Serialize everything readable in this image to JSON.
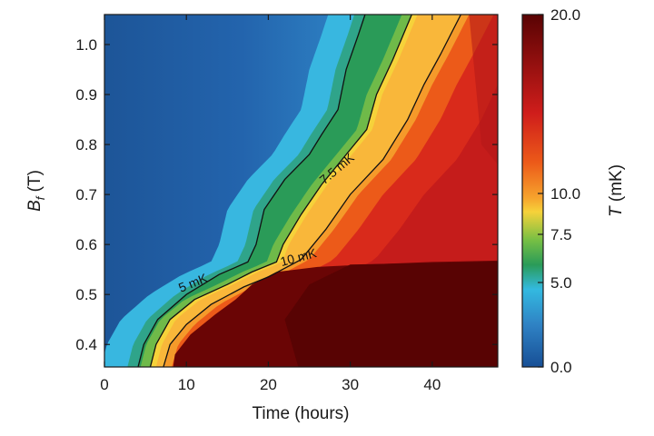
{
  "chart_data": {
    "type": "heatmap",
    "xlabel": "Time (hours)",
    "ylabel_main": "B",
    "ylabel_sub": "f",
    "ylabel_unit": " (T)",
    "xlim": [
      0,
      48
    ],
    "ylim": [
      0.355,
      1.06
    ],
    "x_ticks": [
      0,
      10,
      20,
      30,
      40
    ],
    "x_tick_labels": [
      "0",
      "10",
      "20",
      "30",
      "40"
    ],
    "y_ticks": [
      0.4,
      0.5,
      0.6,
      0.7,
      0.8,
      0.9,
      1.0
    ],
    "y_tick_labels": [
      "0.4",
      "0.5",
      "0.6",
      "0.7",
      "0.8",
      "0.9",
      "1.0"
    ],
    "colorbar": {
      "label_main": "T",
      "label_unit": " (mK)",
      "range": [
        0,
        20
      ],
      "ticks": [
        0.0,
        5.0,
        7.5,
        10.0,
        20.0
      ],
      "tick_labels": [
        "0.0",
        "5.0",
        "7.5",
        "10.0",
        "20.0"
      ],
      "colors": [
        "#174f96",
        "#2f82c4",
        "#33b9e0",
        "#2a9b58",
        "#77bf44",
        "#f6d23a",
        "#f6a32d",
        "#ec5a19",
        "#cf1d1b",
        "#590303"
      ]
    },
    "contours": [
      {
        "name": "5 mK",
        "level": 5,
        "points": [
          [
            4.1,
            0.355
          ],
          [
            4.8,
            0.4
          ],
          [
            6.5,
            0.45
          ],
          [
            10,
            0.5
          ],
          [
            14,
            0.54
          ],
          [
            17.5,
            0.565
          ],
          [
            18.5,
            0.6
          ],
          [
            19.5,
            0.67
          ],
          [
            22,
            0.73
          ],
          [
            25,
            0.78
          ],
          [
            26.5,
            0.82
          ],
          [
            28.5,
            0.87
          ],
          [
            29.5,
            0.95
          ],
          [
            31,
            1.02
          ],
          [
            31.8,
            1.06
          ]
        ]
      },
      {
        "name": "7.5 mK",
        "level": 7.5,
        "points": [
          [
            5.6,
            0.355
          ],
          [
            6.3,
            0.4
          ],
          [
            8,
            0.45
          ],
          [
            11,
            0.49
          ],
          [
            15,
            0.52
          ],
          [
            18,
            0.545
          ],
          [
            21,
            0.565
          ],
          [
            21.8,
            0.6
          ],
          [
            24,
            0.66
          ],
          [
            26.5,
            0.72
          ],
          [
            29.5,
            0.78
          ],
          [
            32,
            0.83
          ],
          [
            33.2,
            0.9
          ],
          [
            35.2,
            0.97
          ],
          [
            37.5,
            1.06
          ]
        ]
      },
      {
        "name": "10 mK",
        "level": 10,
        "points": [
          [
            7.2,
            0.355
          ],
          [
            8,
            0.4
          ],
          [
            10,
            0.44
          ],
          [
            13,
            0.48
          ],
          [
            17,
            0.515
          ],
          [
            20,
            0.535
          ],
          [
            24,
            0.57
          ],
          [
            27,
            0.63
          ],
          [
            30,
            0.7
          ],
          [
            34,
            0.77
          ],
          [
            37,
            0.85
          ],
          [
            39,
            0.92
          ],
          [
            41,
            0.98
          ],
          [
            43.5,
            1.06
          ]
        ]
      }
    ],
    "contour_labels": [
      "5 mK",
      "7.5 mK",
      "10 mK"
    ]
  }
}
